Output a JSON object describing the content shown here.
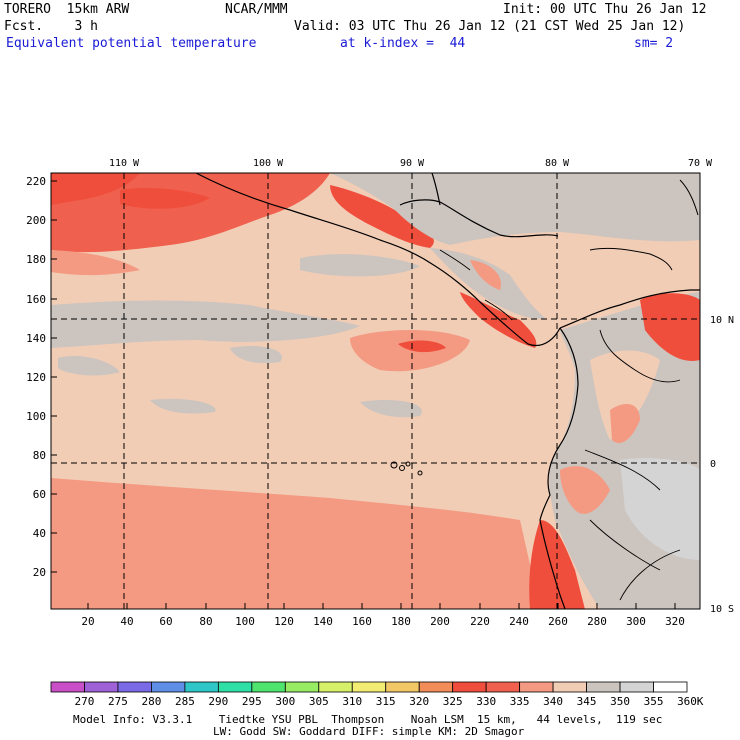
{
  "header": {
    "model": "TORERO  15km ARW",
    "center": "NCAR/MMM",
    "init": "Init: 00 UTC Thu 26 Jan 12",
    "fcst": "Fcst.    3 h",
    "valid": "Valid: 03 UTC Thu 26 Jan 12 (21 CST Wed 25 Jan 12)",
    "field": "Equivalent potential temperature",
    "level": "at k-index =  44",
    "smooth": "sm= 2"
  },
  "map": {
    "top_lon_labels": [
      "110 W",
      "100 W",
      "90 W",
      "80 W",
      "70 W"
    ],
    "right_lat_labels": [
      "10 N",
      "0",
      "10 S"
    ],
    "y_grid_labels": [
      "220",
      "200",
      "180",
      "160",
      "140",
      "120",
      "100",
      "80",
      "60",
      "40",
      "20"
    ],
    "x_grid_labels": [
      "20",
      "40",
      "60",
      "80",
      "100",
      "120",
      "140",
      "160",
      "180",
      "200",
      "220",
      "240",
      "260",
      "280",
      "300",
      "320"
    ]
  },
  "colorbar": {
    "values": [
      "270",
      "275",
      "280",
      "285",
      "290",
      "295",
      "300",
      "305",
      "310",
      "315",
      "320",
      "325",
      "330",
      "335",
      "340",
      "345",
      "350",
      "355",
      "360"
    ],
    "unit": "K",
    "colors": [
      "#c84fc8",
      "#9e62d6",
      "#7a6ae6",
      "#5f8ee6",
      "#2ec6c6",
      "#2ee0a6",
      "#4ee46e",
      "#98ec64",
      "#d6f06a",
      "#f2ec72",
      "#f2c866",
      "#f28c58",
      "#f04e3c",
      "#f0604e",
      "#f49a82",
      "#f2cdb6",
      "#ccc4bf",
      "#d4d4d4",
      "#ffffff"
    ]
  },
  "footer": {
    "line1": "Model Info: V3.3.1    Tiedtke YSU PBL  Thompson    Noah LSM  15 km,   44 levels,  119 sec",
    "line2": "LW: Godd SW: Goddard DIFF: simple KM: 2D Smagor"
  }
}
